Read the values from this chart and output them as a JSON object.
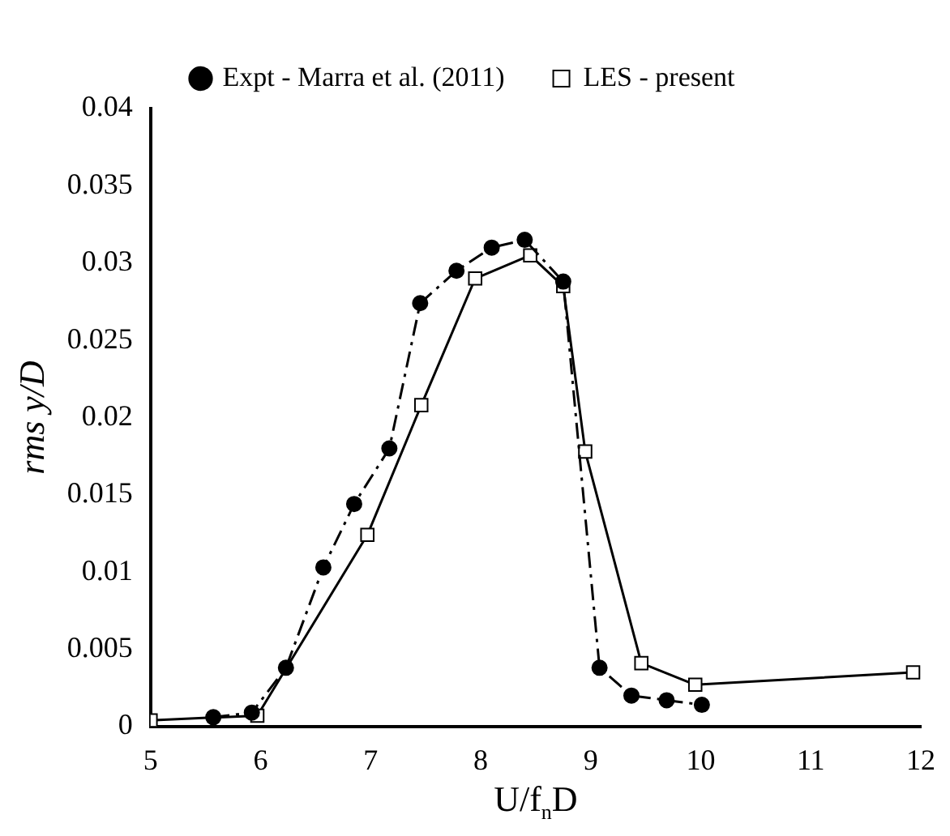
{
  "chart_data": {
    "type": "line",
    "xlabel": "U/f$_{n}$D",
    "ylabel": "rms y/D",
    "xlim": [
      5,
      12
    ],
    "xticks": [
      5,
      6,
      7,
      8,
      9,
      10,
      11,
      12
    ],
    "ylim": [
      0,
      0.04
    ],
    "yticks": [
      0,
      0.005,
      0.01,
      0.015,
      0.02,
      0.025,
      0.03,
      0.035,
      0.04
    ],
    "grid": false,
    "legend": "top",
    "series": [
      {
        "name": "Expt - Marra et al. (2011)",
        "color": "#000000",
        "marker": "circle",
        "line_style": "dashed",
        "x": [
          5.57,
          5.92,
          6.23,
          6.57,
          6.85,
          7.17,
          7.45,
          7.78,
          8.1,
          8.4,
          8.75,
          9.08,
          9.37,
          9.69,
          10.01
        ],
        "values": [
          0.0006,
          0.0009,
          0.0038,
          0.0103,
          0.0144,
          0.018,
          0.0274,
          0.0295,
          0.031,
          0.0315,
          0.0288,
          0.0038,
          0.002,
          0.0017,
          0.0014
        ]
      },
      {
        "name": "LES - present",
        "color": "#000000",
        "marker": "square",
        "line_style": "solid",
        "x": [
          5,
          5.97,
          6.97,
          7.46,
          7.95,
          8.45,
          8.75,
          8.95,
          9.46,
          9.95,
          11.93
        ],
        "values": [
          0.0004,
          0.0007,
          0.0124,
          0.0208,
          0.029,
          0.0305,
          0.0285,
          0.0178,
          0.0041,
          0.0027,
          0.0035
        ]
      }
    ]
  }
}
